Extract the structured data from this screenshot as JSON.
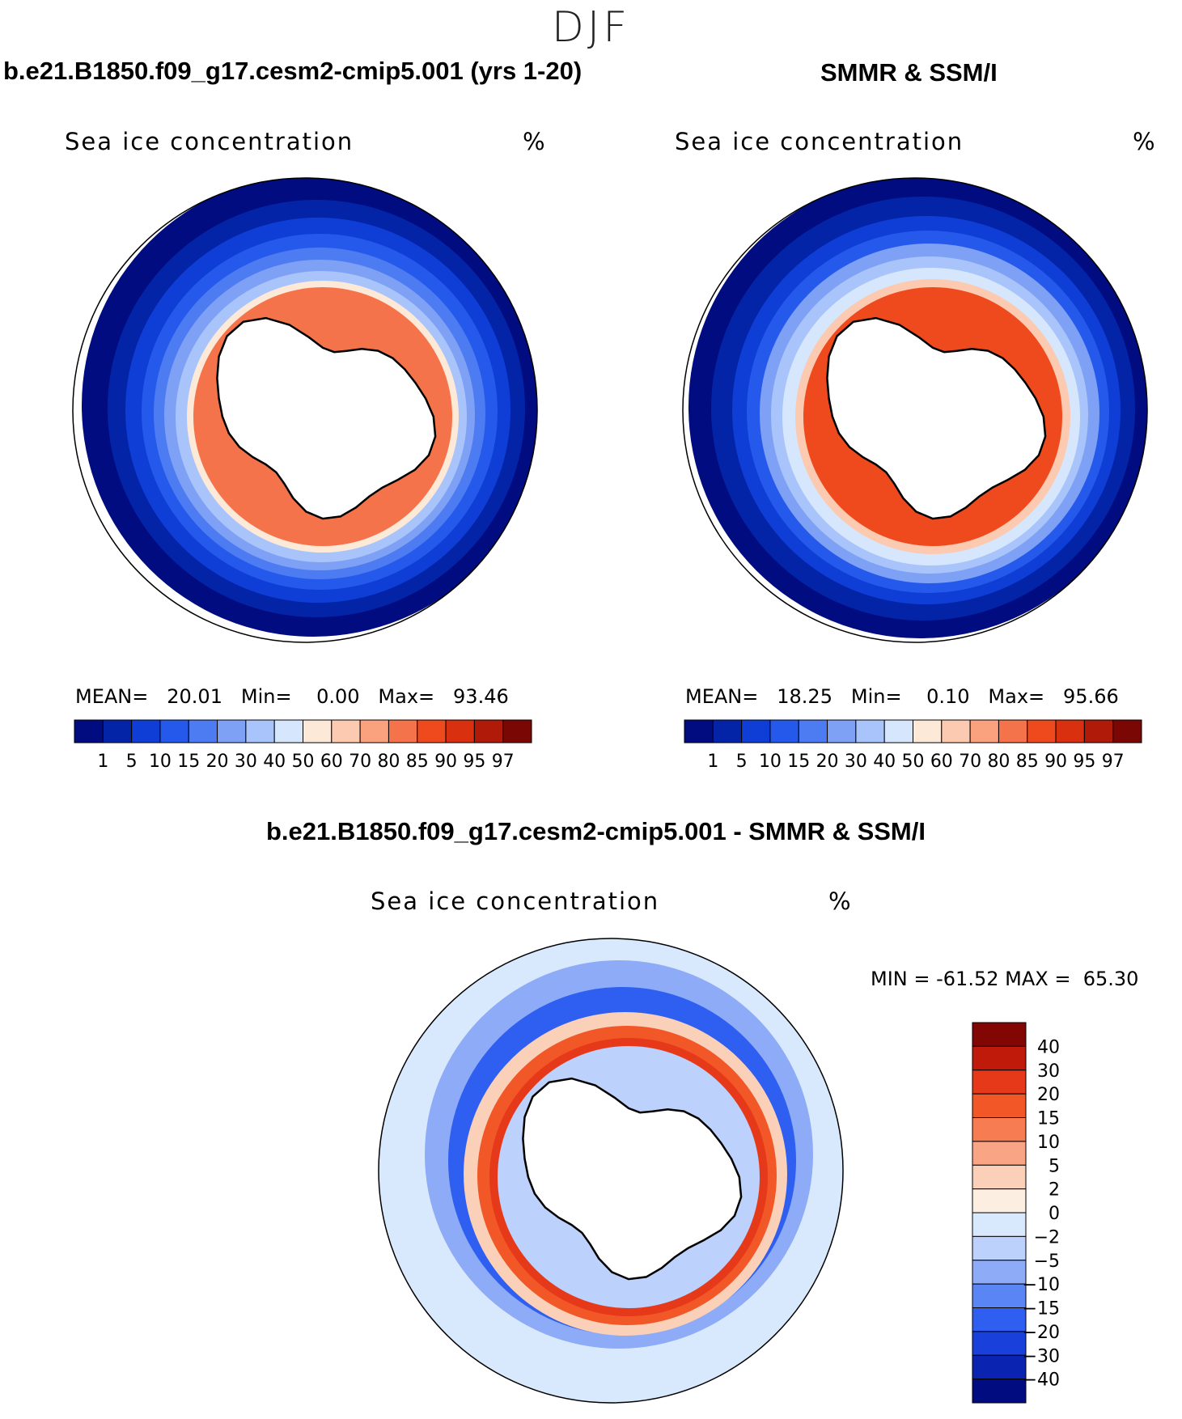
{
  "season": "DJF",
  "colors": {
    "seq": [
      "#000c80",
      "#0424a8",
      "#0f3ed6",
      "#2459eb",
      "#4d7bf2",
      "#7ea1f5",
      "#a9c4fa",
      "#d6e7fd",
      "#fde9d8",
      "#fbcab0",
      "#f9a27d",
      "#f5734b",
      "#ee4a1e",
      "#d9300f",
      "#b01a08",
      "#7a0704"
    ],
    "div": [
      "#000c80",
      "#0a23b0",
      "#1a40dc",
      "#2e5ff0",
      "#5a85f5",
      "#8eabf7",
      "#bcd1fb",
      "#d9e9fd",
      "#fdeee2",
      "#fbd0b8",
      "#f9a585",
      "#f77c52",
      "#f25727",
      "#e6391a",
      "#c01b0a",
      "#820704"
    ]
  },
  "panels": [
    {
      "title": "b.e21.B1850.f09_g17.cesm2-cmip5.001 (yrs 1-20)",
      "variable": "Sea ice concentration",
      "unit": "%",
      "mean_label": "MEAN=",
      "mean": "20.01",
      "min_label": "Min=",
      "min": "0.00",
      "max_label": "Max=",
      "max": "93.46"
    },
    {
      "title": "SMMR & SSM/I",
      "variable": "Sea ice concentration",
      "unit": "%",
      "mean_label": "MEAN=",
      "mean": "18.25",
      "min_label": "Min=",
      "min": "0.10",
      "max_label": "Max=",
      "max": "95.66"
    }
  ],
  "diff": {
    "title": "b.e21.B1850.f09_g17.cesm2-cmip5.001 - SMMR & SSM/I",
    "variable": "Sea ice concentration",
    "unit": "%",
    "min_label": "MIN =",
    "min": "-61.52",
    "max_label": "MAX =",
    "max": "65.30"
  },
  "chart_data": [
    {
      "type": "heatmap",
      "title": "b.e21.B1850.f09_g17.cesm2-cmip5.001 (yrs 1-20)",
      "projection": "south polar stereographic",
      "variable": "Sea ice concentration",
      "units": "%",
      "colorbar_levels": [
        1,
        5,
        10,
        15,
        20,
        30,
        40,
        50,
        60,
        70,
        80,
        85,
        90,
        95,
        97
      ],
      "stats": {
        "mean": 20.01,
        "min": 0.0,
        "max": 93.46
      }
    },
    {
      "type": "heatmap",
      "title": "SMMR & SSM/I",
      "projection": "south polar stereographic",
      "variable": "Sea ice concentration",
      "units": "%",
      "colorbar_levels": [
        1,
        5,
        10,
        15,
        20,
        30,
        40,
        50,
        60,
        70,
        80,
        85,
        90,
        95,
        97
      ],
      "stats": {
        "mean": 18.25,
        "min": 0.1,
        "max": 95.66
      }
    },
    {
      "type": "heatmap",
      "title": "b.e21.B1850.f09_g17.cesm2-cmip5.001 - SMMR & SSM/I",
      "projection": "south polar stereographic",
      "variable": "Sea ice concentration",
      "units": "%",
      "colorbar_levels": [
        40,
        30,
        20,
        15,
        10,
        5,
        2,
        0,
        -2,
        -5,
        -10,
        -15,
        -20,
        -30,
        -40
      ],
      "stats": {
        "min": -61.52,
        "max": 65.3
      }
    }
  ]
}
